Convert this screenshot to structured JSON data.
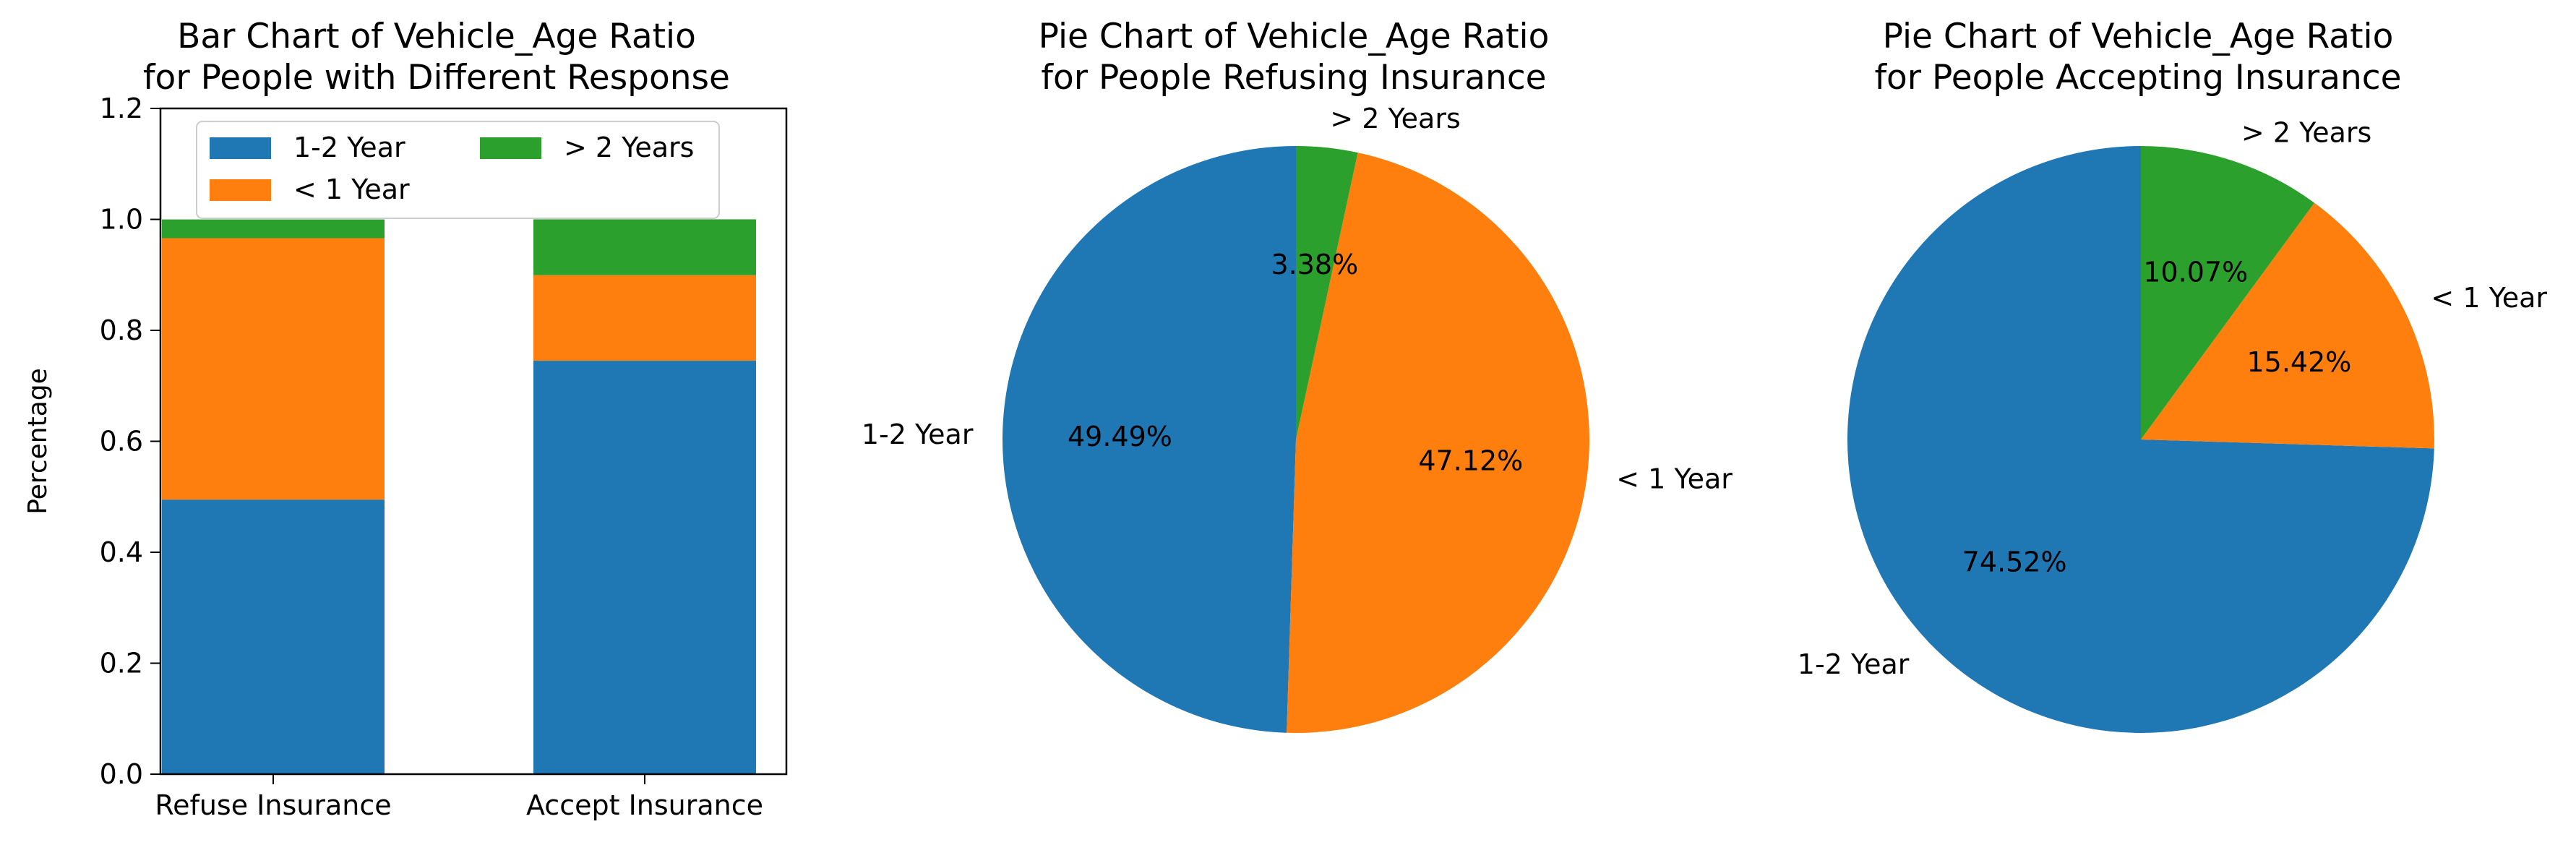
{
  "chart_data": [
    {
      "type": "bar",
      "stacked": true,
      "title": "Bar Chart of Vehicle_Age Ratio\nfor People with Different Response",
      "xlabel": "",
      "ylabel": "Percentage",
      "ylim": [
        0,
        1.2
      ],
      "yticks": [
        "0.0",
        "0.2",
        "0.4",
        "0.6",
        "0.8",
        "1.0",
        "1.2"
      ],
      "categories": [
        "Refuse Insurance",
        "Accept Insurance"
      ],
      "series": [
        {
          "name": "1-2 Year",
          "color": "#1f77b4",
          "values": [
            0.4949,
            0.7452
          ]
        },
        {
          "name": "< 1 Year",
          "color": "#ff7f0e",
          "values": [
            0.4712,
            0.1542
          ]
        },
        {
          "name": "> 2 Years",
          "color": "#2ca02c",
          "values": [
            0.0338,
            0.1007
          ]
        }
      ],
      "legend": {
        "placement": "upper-center",
        "columns": 2
      },
      "grid": false
    },
    {
      "type": "pie",
      "title": "Pie Chart of Vehicle_Age Ratio\nfor People Refusing Insurance",
      "start_angle": 90,
      "direction": "counterclockwise",
      "slices": [
        {
          "label": "1-2 Year",
          "value": 49.49,
          "pct_text": "49.49%",
          "color": "#1f77b4"
        },
        {
          "label": "< 1 Year",
          "value": 47.12,
          "pct_text": "47.12%",
          "color": "#ff7f0e"
        },
        {
          "label": "> 2 Years",
          "value": 3.38,
          "pct_text": "3.38%",
          "color": "#2ca02c"
        }
      ]
    },
    {
      "type": "pie",
      "title": "Pie Chart of Vehicle_Age Ratio\nfor People Accepting Insurance",
      "start_angle": 90,
      "direction": "counterclockwise",
      "slices": [
        {
          "label": "1-2 Year",
          "value": 74.52,
          "pct_text": "74.52%",
          "color": "#1f77b4"
        },
        {
          "label": "< 1 Year",
          "value": 15.42,
          "pct_text": "15.42%",
          "color": "#ff7f0e"
        },
        {
          "label": "> 2 Years",
          "value": 10.07,
          "pct_text": "10.07%",
          "color": "#2ca02c"
        }
      ]
    }
  ]
}
